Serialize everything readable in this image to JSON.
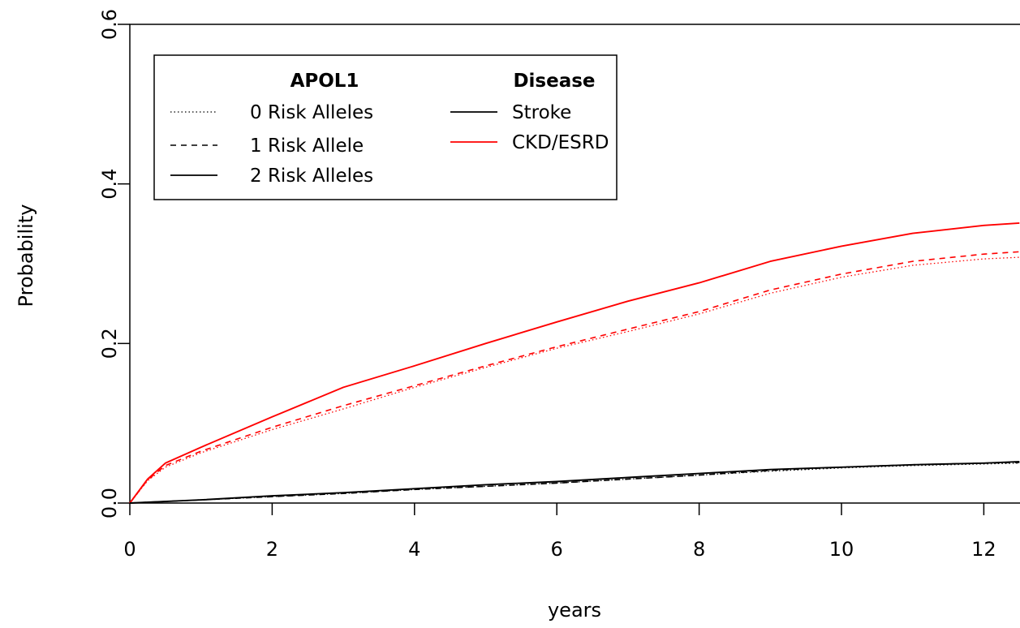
{
  "chart_data": {
    "type": "line",
    "title": "",
    "xlabel": "years",
    "ylabel": "Probability",
    "xlim": [
      0,
      12.5
    ],
    "ylim": [
      0,
      0.6
    ],
    "xticks": [
      0,
      2,
      4,
      6,
      8,
      10,
      12
    ],
    "xtick_labels": [
      "0",
      "2",
      "4",
      "6",
      "8",
      "10",
      "12"
    ],
    "yticks": [
      0,
      0.2,
      0.4,
      0.6
    ],
    "ytick_labels": [
      "0.0",
      "0.2",
      "0.4",
      "0.6"
    ],
    "grid": false,
    "legend": {
      "placement": "top-left",
      "apol1_heading": "APOL1",
      "disease_heading": "Disease",
      "apol1_entries": [
        {
          "label": "0 Risk Alleles",
          "linestyle": "dotted"
        },
        {
          "label": "1 Risk Allele",
          "linestyle": "dashed"
        },
        {
          "label": "2 Risk Alleles",
          "linestyle": "solid"
        }
      ],
      "disease_entries": [
        {
          "label": "Stroke",
          "color": "#000000"
        },
        {
          "label": "CKD/ESRD",
          "color": "#ff0000"
        }
      ]
    },
    "series": [
      {
        "disease": "CKD/ESRD",
        "apol1": "0 Risk Alleles",
        "color": "#ff0000",
        "linestyle": "dotted",
        "x": [
          0,
          0.25,
          0.5,
          1,
          2,
          3,
          4,
          5,
          6,
          7,
          8,
          9,
          10,
          11,
          12,
          12.5
        ],
        "y": [
          0,
          0.028,
          0.045,
          0.063,
          0.092,
          0.118,
          0.145,
          0.17,
          0.194,
          0.215,
          0.237,
          0.263,
          0.283,
          0.298,
          0.306,
          0.308
        ]
      },
      {
        "disease": "CKD/ESRD",
        "apol1": "1 Risk Allele",
        "color": "#ff0000",
        "linestyle": "dashed",
        "x": [
          0,
          0.25,
          0.5,
          1,
          2,
          3,
          4,
          5,
          6,
          7,
          8,
          9,
          10,
          11,
          12,
          12.5
        ],
        "y": [
          0,
          0.029,
          0.047,
          0.065,
          0.095,
          0.122,
          0.147,
          0.172,
          0.196,
          0.218,
          0.24,
          0.267,
          0.287,
          0.303,
          0.312,
          0.315
        ]
      },
      {
        "disease": "CKD/ESRD",
        "apol1": "2 Risk Alleles",
        "color": "#ff0000",
        "linestyle": "solid",
        "x": [
          0,
          0.25,
          0.5,
          1,
          2,
          3,
          4,
          5,
          6,
          7,
          8,
          9,
          10,
          11,
          12,
          12.5
        ],
        "y": [
          0,
          0.03,
          0.05,
          0.07,
          0.108,
          0.145,
          0.172,
          0.2,
          0.227,
          0.253,
          0.276,
          0.303,
          0.322,
          0.338,
          0.348,
          0.351
        ]
      },
      {
        "disease": "Stroke",
        "apol1": "0 Risk Alleles",
        "color": "#000000",
        "linestyle": "dotted",
        "x": [
          0,
          1,
          2,
          3,
          4,
          5,
          6,
          7,
          8,
          9,
          10,
          11,
          12,
          12.5
        ],
        "y": [
          0,
          0.004,
          0.008,
          0.012,
          0.017,
          0.021,
          0.025,
          0.03,
          0.035,
          0.04,
          0.044,
          0.047,
          0.049,
          0.05
        ]
      },
      {
        "disease": "Stroke",
        "apol1": "1 Risk Allele",
        "color": "#000000",
        "linestyle": "dashed",
        "x": [
          0,
          1,
          2,
          3,
          4,
          5,
          6,
          7,
          8,
          9,
          10,
          11,
          12,
          12.5
        ],
        "y": [
          0,
          0.004,
          0.008,
          0.012,
          0.017,
          0.021,
          0.025,
          0.03,
          0.035,
          0.041,
          0.045,
          0.048,
          0.05,
          0.051
        ]
      },
      {
        "disease": "Stroke",
        "apol1": "2 Risk Alleles",
        "color": "#000000",
        "linestyle": "solid",
        "x": [
          0,
          1,
          2,
          3,
          4,
          5,
          6,
          7,
          8,
          9,
          10,
          11,
          12,
          12.5
        ],
        "y": [
          0,
          0.004,
          0.009,
          0.013,
          0.018,
          0.023,
          0.027,
          0.032,
          0.037,
          0.042,
          0.045,
          0.048,
          0.05,
          0.052
        ]
      }
    ]
  }
}
